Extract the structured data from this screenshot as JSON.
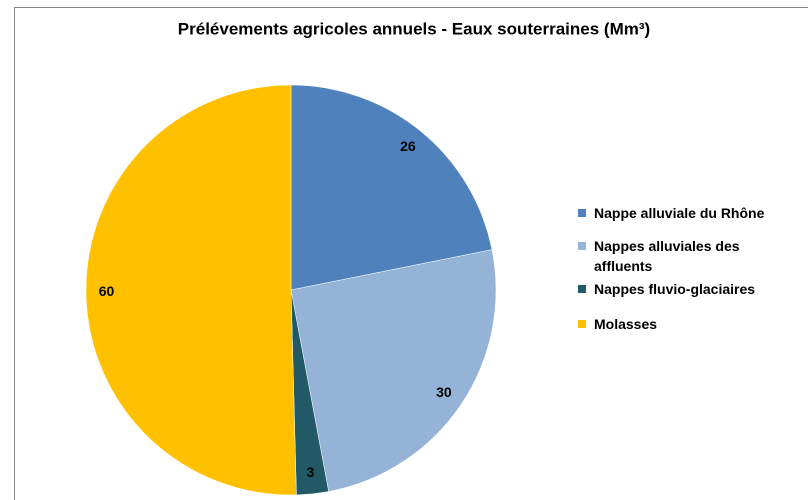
{
  "chart_data": {
    "type": "pie",
    "title": "Prélévements agricoles annuels - Eaux souterraines (Mm³)",
    "categories": [
      "Nappe alluviale du Rhône",
      "Nappes alluviales des affluents",
      "Nappes fluvio-glaciaires",
      "Molasses"
    ],
    "values": [
      26,
      30,
      3,
      60
    ],
    "colors": [
      "#4f81bd",
      "#95b3d7",
      "#215967",
      "#ffc000"
    ],
    "legend": "right"
  }
}
